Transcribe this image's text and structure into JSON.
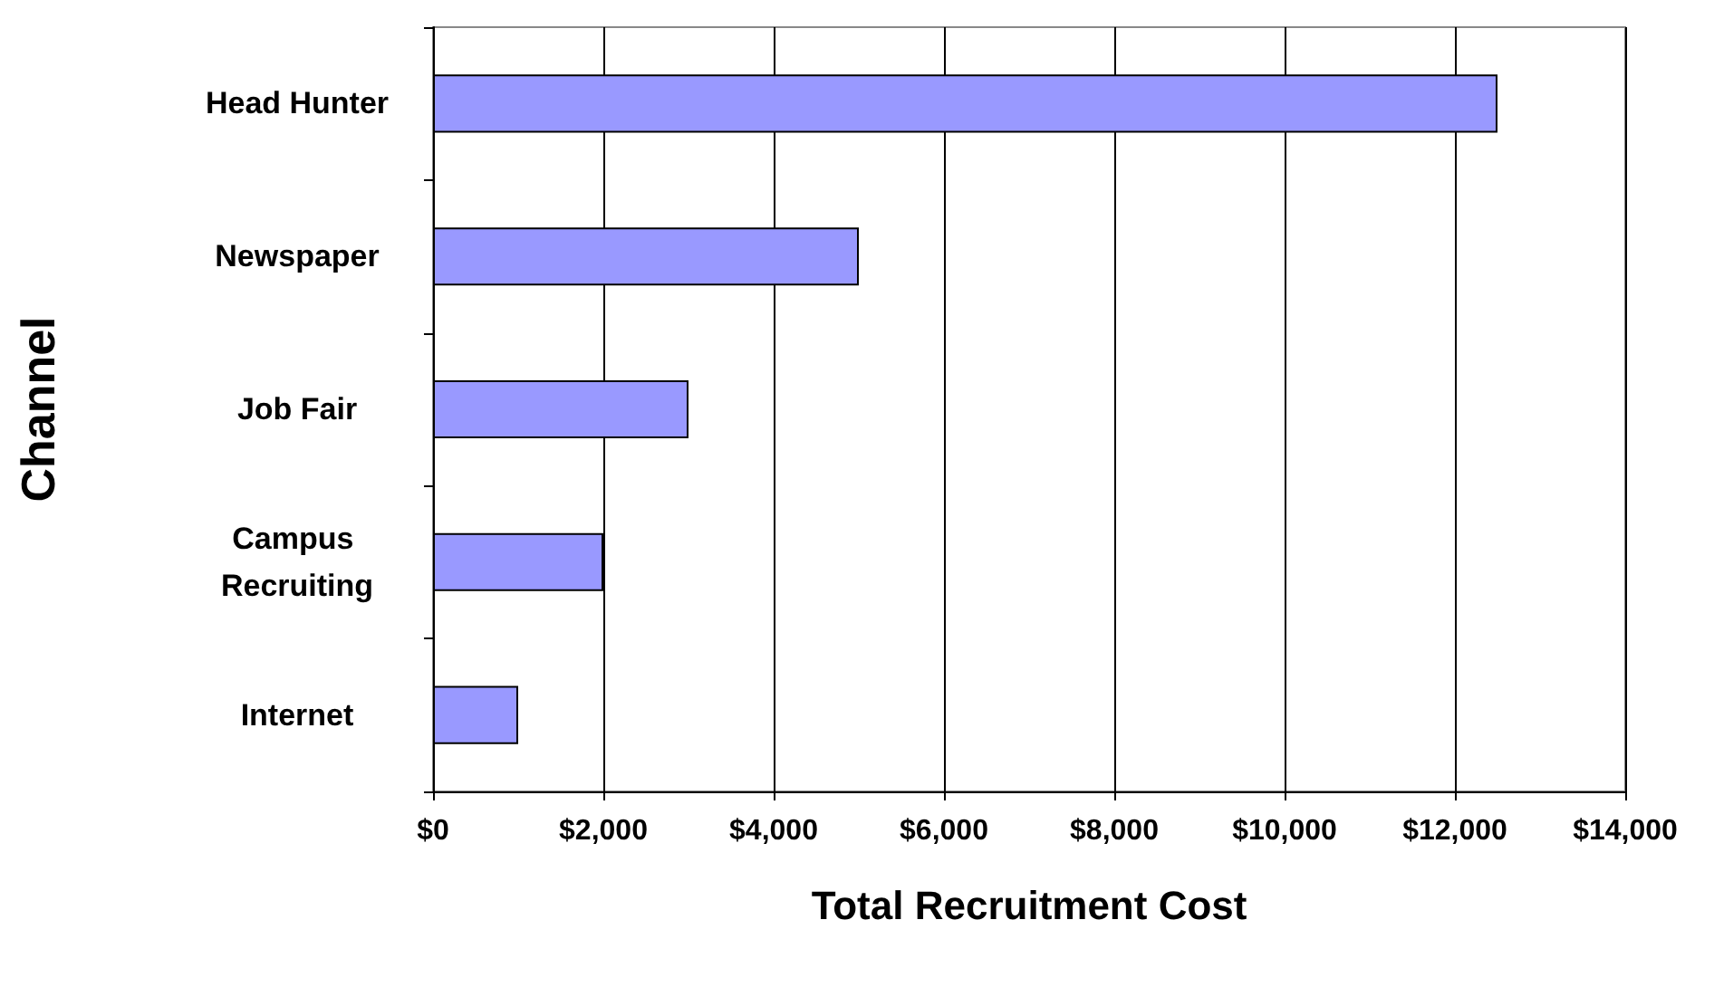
{
  "chart_data": {
    "type": "bar",
    "orientation": "horizontal",
    "xlabel": "Total Recruitment Cost",
    "ylabel": "Channel",
    "categories": [
      "Head Hunter",
      "Newspaper",
      "Job Fair",
      "Campus Recruiting",
      "Internet"
    ],
    "values": [
      12500,
      5000,
      3000,
      2000,
      1000
    ],
    "color": "#9999ff",
    "xlim": [
      0,
      14000
    ],
    "xticks": [
      {
        "value": 0,
        "label": "$0"
      },
      {
        "value": 2000,
        "label": "$2,000"
      },
      {
        "value": 4000,
        "label": "$4,000"
      },
      {
        "value": 6000,
        "label": "$6,000"
      },
      {
        "value": 8000,
        "label": "$8,000"
      },
      {
        "value": 10000,
        "label": "$10,000"
      },
      {
        "value": 12000,
        "label": "$12,000"
      },
      {
        "value": 14000,
        "label": "$14,000"
      }
    ],
    "grid": "x"
  }
}
